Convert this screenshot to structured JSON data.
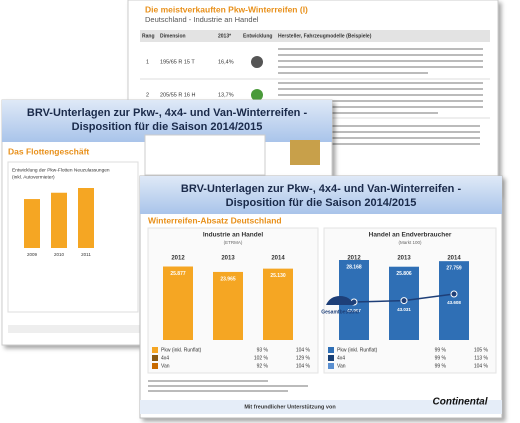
{
  "back_slide": {
    "title": "Die meistverkauften Pkw-Winterreifen (I)",
    "subtitle": "Deutschland - Industrie an Handel",
    "table": {
      "header": [
        "Rang",
        "Dimension",
        "2013*",
        "Entwicklung",
        "Hersteller, Fahrzeugmodelle (Beispiele)"
      ],
      "rows": [
        [
          "1",
          "195/65 R 15 T",
          "16,4%"
        ],
        [
          "2",
          "205/55 R 16 H",
          "13,7%"
        ]
      ]
    }
  },
  "middle_slide": {
    "title_lines": [
      "BRV-Unterlagen zur Pkw-, 4x4- und Van-Winterreifen -",
      "Disposition für die Saison 2014/2015"
    ],
    "section": "Das Flottengeschäft",
    "chart": {
      "title_lines": [
        "Entwicklung der Pkw-Flotten Neuzulassungen",
        "(inkl. Autovermieter)"
      ],
      "categories": [
        "2009",
        "2010",
        "2011"
      ],
      "values": [
        620,
        700,
        760
      ],
      "color": "#f5a623"
    }
  },
  "front_slide": {
    "title_lines": [
      "BRV-Unterlagen zur Pkw-, 4x4- und Van-Winterreifen -",
      "Disposition für die Saison 2014/2015"
    ],
    "section": "Winterreifen-Absatz Deutschland",
    "panels": [
      {
        "title": "Industrie an Handel",
        "source": "(ETRMA)",
        "categories": [
          "2012",
          "2013",
          "2014"
        ],
        "values": [
          25877,
          23965,
          25130
        ],
        "value_labels": [
          "25.877",
          "23.965",
          "25.130"
        ],
        "color": "#f5a623",
        "legend": [
          [
            "Pkw (inkl. Runflat)",
            "93 %",
            "104 %"
          ],
          [
            "4x4",
            "102 %",
            "129 %"
          ],
          [
            "Van",
            "92 %",
            "104 %"
          ]
        ]
      },
      {
        "title": "Handel an Endverbraucher",
        "source": "(Markt 100)",
        "categories": [
          "2012",
          "2013",
          "2014"
        ],
        "values": [
          28168,
          25806,
          27759
        ],
        "value_labels": [
          "28.168",
          "25.806",
          "27.759"
        ],
        "color": "#2f6fb5",
        "line": {
          "name": "Gesamtbestand",
          "values": [
            42907,
            43031,
            43608
          ],
          "value_labels": [
            "42.907",
            "43.031",
            "43.608"
          ]
        },
        "legend": [
          [
            "Pkw (inkl. Runflat)",
            "99 %",
            "105 %"
          ],
          [
            "4x4",
            "99 %",
            "113 %"
          ],
          [
            "Van",
            "99 %",
            "104 %"
          ]
        ]
      }
    ],
    "footer": "Mit freundlicher Unterstützung von",
    "logo": "Continental"
  }
}
